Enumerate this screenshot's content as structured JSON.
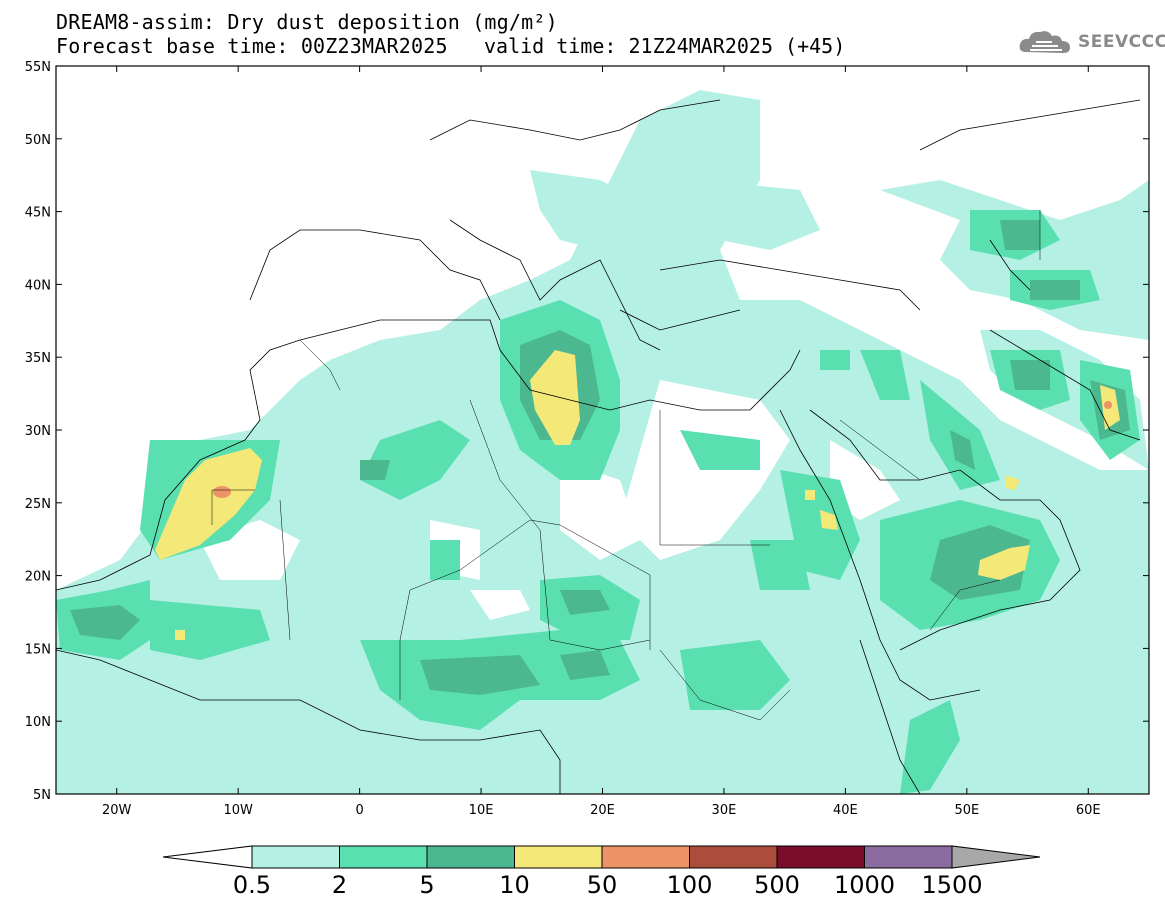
{
  "header": {
    "title": "DREAM8-assim: Dry dust deposition (mg/m²)",
    "base_time": "Forecast base time: 00Z23MAR2025",
    "valid_time": "valid time: 21Z24MAR2025 (+45)",
    "logo_text": "SEEVCCC",
    "logo_icon": "cloud-icon"
  },
  "map": {
    "lat_labels": [
      "55N",
      "50N",
      "45N",
      "40N",
      "35N",
      "30N",
      "25N",
      "20N",
      "15N",
      "10N",
      "5N"
    ],
    "lon_labels": [
      "20W",
      "10W",
      "0",
      "10E",
      "20E",
      "30E",
      "40E",
      "50E",
      "60E"
    ],
    "lon_range": [
      -25,
      65
    ],
    "lat_range": [
      5,
      55
    ]
  },
  "colorbar": {
    "labels": [
      "0.5",
      "2",
      "5",
      "10",
      "50",
      "100",
      "500",
      "1000",
      "1500"
    ],
    "colors": [
      "#b4f0e4",
      "#5ae0b0",
      "#4cb890",
      "#f4e878",
      "#ec9468",
      "#ac4c3c",
      "#7c0c2c",
      "#8c6ca0"
    ],
    "under_color": "#ffffff",
    "over_color": "#a8a8a8"
  }
}
